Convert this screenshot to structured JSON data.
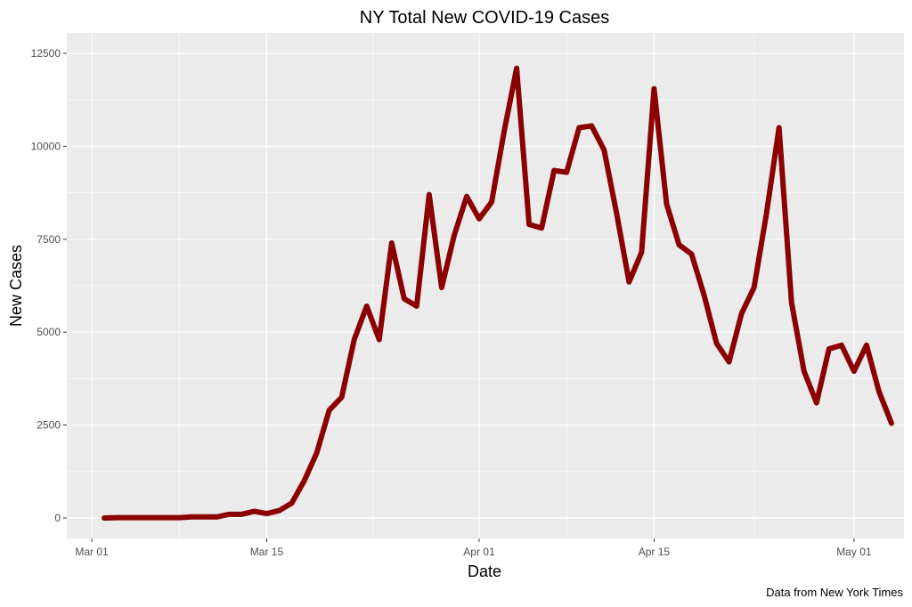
{
  "chart_data": {
    "type": "line",
    "title": "NY Total New COVID-19 Cases",
    "xlabel": "Date",
    "ylabel": "New Cases",
    "caption": "Data from New York Times",
    "x_ticks": [
      "Mar 01",
      "Mar 15",
      "Apr 01",
      "Apr 15",
      "May 01"
    ],
    "y_ticks": [
      "0",
      "2500",
      "5000",
      "7500",
      "10000",
      "12500"
    ],
    "ylim": [
      -550,
      13050
    ],
    "xlim": [
      "2020-02-28",
      "2020-05-05"
    ],
    "grid": true,
    "line_color": "#8B0000",
    "background_color": "#EBEBEB",
    "series": [
      {
        "dates": [
          "2020-03-02",
          "2020-03-03",
          "2020-03-04",
          "2020-03-05",
          "2020-03-06",
          "2020-03-07",
          "2020-03-08",
          "2020-03-09",
          "2020-03-10",
          "2020-03-11",
          "2020-03-12",
          "2020-03-13",
          "2020-03-14",
          "2020-03-15",
          "2020-03-16",
          "2020-03-17",
          "2020-03-18",
          "2020-03-19",
          "2020-03-20",
          "2020-03-21",
          "2020-03-22",
          "2020-03-23",
          "2020-03-24",
          "2020-03-25",
          "2020-03-26",
          "2020-03-27",
          "2020-03-28",
          "2020-03-29",
          "2020-03-30",
          "2020-03-31",
          "2020-04-01",
          "2020-04-02",
          "2020-04-03",
          "2020-04-04",
          "2020-04-05",
          "2020-04-06",
          "2020-04-07",
          "2020-04-08",
          "2020-04-09",
          "2020-04-10",
          "2020-04-11",
          "2020-04-12",
          "2020-04-13",
          "2020-04-14",
          "2020-04-15",
          "2020-04-16",
          "2020-04-17",
          "2020-04-18",
          "2020-04-19",
          "2020-04-20",
          "2020-04-21",
          "2020-04-22",
          "2020-04-23",
          "2020-04-24",
          "2020-04-25",
          "2020-04-26",
          "2020-04-27",
          "2020-04-28",
          "2020-04-29",
          "2020-04-30",
          "2020-05-01",
          "2020-05-02",
          "2020-05-03",
          "2020-05-04"
        ],
        "values": [
          0,
          10,
          10,
          10,
          10,
          10,
          10,
          30,
          30,
          30,
          100,
          100,
          180,
          120,
          200,
          400,
          1000,
          1750,
          2900,
          3250,
          4800,
          5700,
          4800,
          7400,
          5900,
          5700,
          8700,
          6200,
          7600,
          8650,
          8050,
          8500,
          10400,
          12100,
          7900,
          7800,
          9350,
          9300,
          10500,
          10550,
          9900,
          8200,
          6350,
          7150,
          11550,
          8450,
          7350,
          7100,
          6000,
          4700,
          4200,
          5500,
          6200,
          8200,
          10500,
          5800,
          3950,
          3100,
          4550,
          4650,
          3950,
          4650,
          3400,
          2550
        ]
      }
    ]
  }
}
